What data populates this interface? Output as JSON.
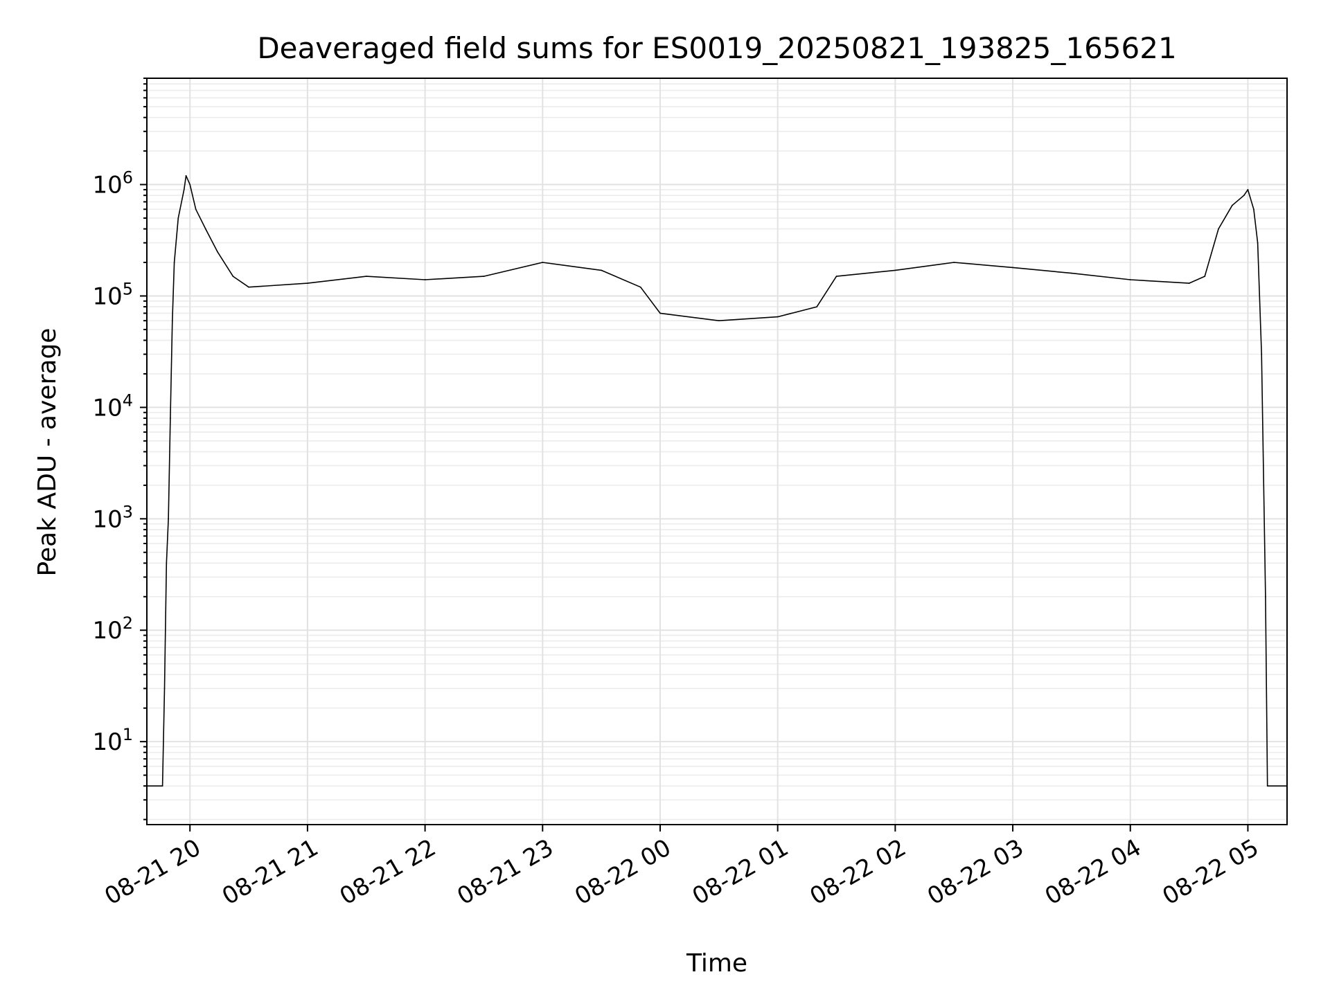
{
  "chart_data": {
    "type": "line",
    "title": "Deaveraged field sums for ES0019_20250821_193825_165621",
    "xlabel": "Time",
    "ylabel": "Peak ADU - average",
    "yscale": "log",
    "grid": true,
    "line_color": "#000000",
    "x_tick_labels": [
      "08-21 20",
      "08-21 21",
      "08-21 22",
      "08-21 23",
      "08-22 00",
      "08-22 01",
      "08-22 02",
      "08-22 03",
      "08-22 04",
      "08-22 05"
    ],
    "y_tick_labels": [
      {
        "base": "10",
        "exp": "1"
      },
      {
        "base": "10",
        "exp": "2"
      },
      {
        "base": "10",
        "exp": "3"
      },
      {
        "base": "10",
        "exp": "4"
      },
      {
        "base": "10",
        "exp": "5"
      },
      {
        "base": "10",
        "exp": "6"
      }
    ],
    "xlim": [
      "2025-08-21 19:38",
      "2025-08-22 05:20"
    ],
    "ylim": [
      1.8,
      9000000
    ],
    "series": [
      {
        "points": [
          [
            "2025-08-21 19:38",
            4
          ],
          [
            "2025-08-21 19:46",
            4
          ],
          [
            "2025-08-21 19:47",
            30
          ],
          [
            "2025-08-21 19:48",
            400
          ],
          [
            "2025-08-21 19:49",
            1000
          ],
          [
            "2025-08-21 19:50",
            8000
          ],
          [
            "2025-08-21 19:51",
            60000
          ],
          [
            "2025-08-21 19:52",
            200000
          ],
          [
            "2025-08-21 19:54",
            500000
          ],
          [
            "2025-08-21 19:57",
            900000
          ],
          [
            "2025-08-21 19:58",
            1200000
          ],
          [
            "2025-08-21 20:00",
            1000000
          ],
          [
            "2025-08-21 20:03",
            600000
          ],
          [
            "2025-08-21 20:08",
            400000
          ],
          [
            "2025-08-21 20:14",
            250000
          ],
          [
            "2025-08-21 20:22",
            150000
          ],
          [
            "2025-08-21 20:30",
            120000
          ],
          [
            "2025-08-21 21:00",
            130000
          ],
          [
            "2025-08-21 21:30",
            150000
          ],
          [
            "2025-08-21 22:00",
            140000
          ],
          [
            "2025-08-21 22:30",
            150000
          ],
          [
            "2025-08-21 23:00",
            200000
          ],
          [
            "2025-08-21 23:30",
            170000
          ],
          [
            "2025-08-21 23:50",
            120000
          ],
          [
            "2025-08-22 00:00",
            70000
          ],
          [
            "2025-08-22 00:30",
            60000
          ],
          [
            "2025-08-22 01:00",
            65000
          ],
          [
            "2025-08-22 01:20",
            80000
          ],
          [
            "2025-08-22 01:30",
            150000
          ],
          [
            "2025-08-22 02:00",
            170000
          ],
          [
            "2025-08-22 02:30",
            200000
          ],
          [
            "2025-08-22 03:00",
            180000
          ],
          [
            "2025-08-22 03:30",
            160000
          ],
          [
            "2025-08-22 04:00",
            140000
          ],
          [
            "2025-08-22 04:30",
            130000
          ],
          [
            "2025-08-22 04:38",
            150000
          ],
          [
            "2025-08-22 04:45",
            400000
          ],
          [
            "2025-08-22 04:52",
            650000
          ],
          [
            "2025-08-22 04:58",
            800000
          ],
          [
            "2025-08-22 05:00",
            900000
          ],
          [
            "2025-08-22 05:03",
            600000
          ],
          [
            "2025-08-22 05:05",
            300000
          ],
          [
            "2025-08-22 05:07",
            30000
          ],
          [
            "2025-08-22 05:09",
            200
          ],
          [
            "2025-08-22 05:10",
            4
          ],
          [
            "2025-08-22 05:20",
            4
          ]
        ]
      }
    ]
  }
}
